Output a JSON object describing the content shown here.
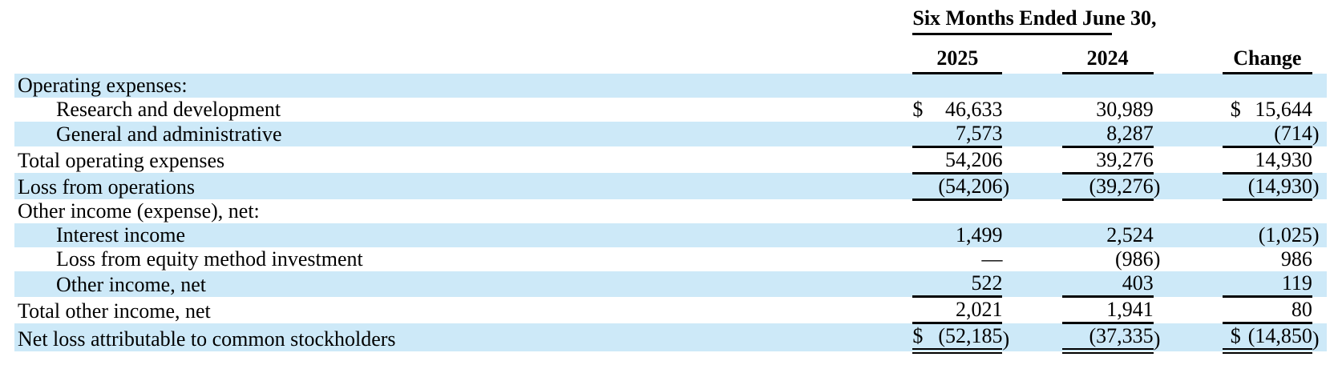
{
  "table": {
    "period_header": "Six Months Ended June 30,",
    "columns": [
      "2025",
      "2024",
      "Change"
    ],
    "rows": [
      {
        "label": "Operating expenses:",
        "indent": 0,
        "shaded": true,
        "rule": "none",
        "cells": null
      },
      {
        "label": "Research and development",
        "indent": 1,
        "shaded": false,
        "rule": "none",
        "cells": [
          {
            "sym": "$",
            "val": "46,633"
          },
          {
            "sym": "",
            "val": "30,989"
          },
          {
            "sym": "$",
            "val": "15,644"
          }
        ]
      },
      {
        "label": "General and administrative",
        "indent": 1,
        "shaded": true,
        "rule": "single",
        "cells": [
          {
            "sym": "",
            "val": "7,573"
          },
          {
            "sym": "",
            "val": "8,287"
          },
          {
            "sym": "",
            "val": "(714)"
          }
        ]
      },
      {
        "label": "Total operating expenses",
        "indent": 0,
        "shaded": false,
        "rule": "single",
        "cells": [
          {
            "sym": "",
            "val": "54,206"
          },
          {
            "sym": "",
            "val": "39,276"
          },
          {
            "sym": "",
            "val": "14,930"
          }
        ]
      },
      {
        "label": "Loss from operations",
        "indent": 0,
        "shaded": true,
        "rule": "single",
        "cells": [
          {
            "sym": "",
            "val": "(54,206)"
          },
          {
            "sym": "",
            "val": "(39,276)"
          },
          {
            "sym": "",
            "val": "(14,930)"
          }
        ]
      },
      {
        "label": "Other income (expense), net:",
        "indent": 0,
        "shaded": false,
        "rule": "none",
        "cells": null
      },
      {
        "label": "Interest income",
        "indent": 1,
        "shaded": true,
        "rule": "none",
        "cells": [
          {
            "sym": "",
            "val": "1,499"
          },
          {
            "sym": "",
            "val": "2,524"
          },
          {
            "sym": "",
            "val": "(1,025)"
          }
        ]
      },
      {
        "label": "Loss from equity method investment",
        "indent": 1,
        "shaded": false,
        "rule": "none",
        "cells": [
          {
            "sym": "",
            "val": "—"
          },
          {
            "sym": "",
            "val": "(986)"
          },
          {
            "sym": "",
            "val": "986"
          }
        ]
      },
      {
        "label": "Other income, net",
        "indent": 1,
        "shaded": true,
        "rule": "single",
        "cells": [
          {
            "sym": "",
            "val": "522"
          },
          {
            "sym": "",
            "val": "403"
          },
          {
            "sym": "",
            "val": "119"
          }
        ]
      },
      {
        "label": "Total other income, net",
        "indent": 0,
        "shaded": false,
        "rule": "single",
        "cells": [
          {
            "sym": "",
            "val": "2,021"
          },
          {
            "sym": "",
            "val": "1,941"
          },
          {
            "sym": "",
            "val": "80"
          }
        ]
      },
      {
        "label": "Net loss attributable to common stockholders",
        "indent": 0,
        "shaded": true,
        "rule": "double",
        "cells": [
          {
            "sym": "$",
            "val": "(52,185)"
          },
          {
            "sym": "",
            "val": "(37,335)"
          },
          {
            "sym": "$",
            "val": "(14,850)"
          }
        ]
      }
    ]
  },
  "colors": {
    "stripe": "#cde9f8",
    "text": "#000000",
    "rule": "#000000"
  }
}
